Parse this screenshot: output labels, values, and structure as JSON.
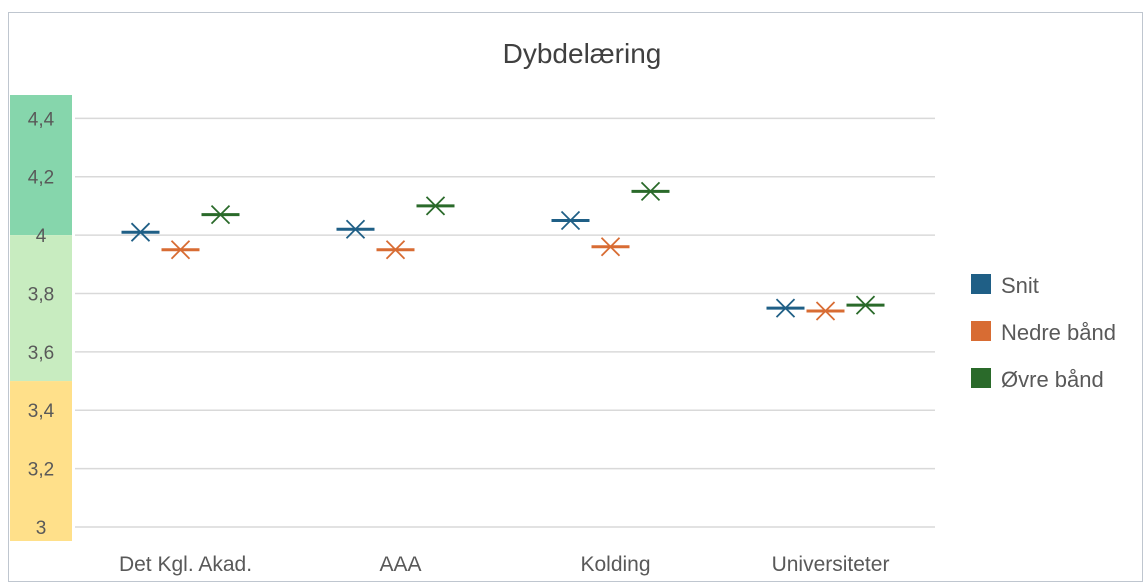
{
  "chart_data": {
    "type": "scatter",
    "title": "Dybdelæring",
    "xlabel": "",
    "ylabel": "",
    "categories": [
      "Det Kgl. Akad.",
      "AAA",
      "Kolding",
      "Universiteter"
    ],
    "ylim": [
      3,
      4.48
    ],
    "y_ticks": [
      "3",
      "3,2",
      "3,4",
      "3,6",
      "3,8",
      "4",
      "4,2",
      "4,4"
    ],
    "y_tick_values": [
      3,
      3.2,
      3.4,
      3.6,
      3.8,
      4,
      4.2,
      4.4
    ],
    "grid": true,
    "legend_position": "right",
    "marker": "x-with-dash",
    "series": [
      {
        "name": "Snit",
        "color": "#1f5f86",
        "values": [
          4.01,
          4.02,
          4.05,
          3.75
        ]
      },
      {
        "name": "Nedre bånd",
        "color": "#d86c33",
        "values": [
          3.95,
          3.95,
          3.96,
          3.74
        ]
      },
      {
        "name": "Øvre bånd",
        "color": "#2a6a2a",
        "values": [
          4.07,
          4.1,
          4.15,
          3.76
        ]
      }
    ],
    "bands": [
      {
        "from": 4.0,
        "to": 4.48,
        "color": "#86d6ac"
      },
      {
        "from": 3.5,
        "to": 4.0,
        "color": "#c8ecc0"
      },
      {
        "from": 3.0,
        "to": 3.5,
        "color": "#ffe08a"
      }
    ],
    "colors": {
      "grid": "#d9d9d9",
      "tick_label": "#595959",
      "title": "#404040"
    }
  }
}
